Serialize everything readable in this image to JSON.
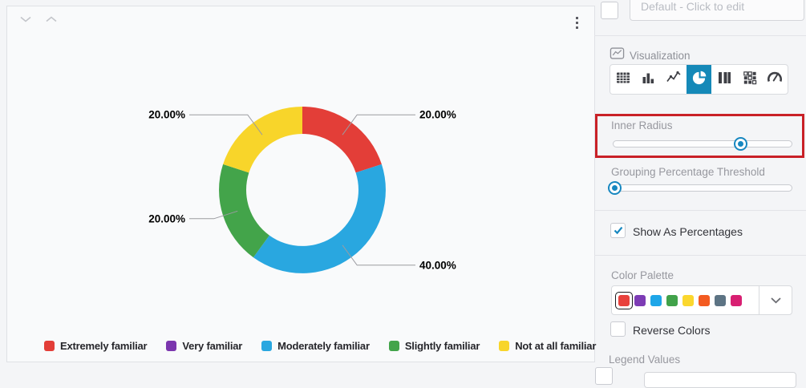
{
  "colors": {
    "accent_blue": "#1589b8",
    "slider_blue": "#1787c0",
    "annotation_red": "#c92127",
    "connector_gray": "#9a9ba0"
  },
  "chart_data": {
    "type": "pie",
    "subtype": "donut",
    "title": "",
    "categories": [
      "Extremely familiar",
      "Very familiar",
      "Moderately familiar",
      "Slightly familiar",
      "Not at all familiar"
    ],
    "values": [
      20,
      0,
      40,
      20,
      20
    ],
    "colors": [
      "#e33e38",
      "#7b36ae",
      "#29a7e0",
      "#43a44a",
      "#f8d52a"
    ],
    "displayed_labels": [
      "20.00%",
      "40.00%",
      "20.00%",
      "20.00%"
    ],
    "label_format": "percent-2dp",
    "legend_position": "bottom",
    "start_angle_deg": 0,
    "direction": "clockwise"
  },
  "sidebar": {
    "title_field": {
      "placeholder": "Default - Click to edit",
      "checked": false
    },
    "visualization": {
      "label": "Visualization",
      "types": [
        "table",
        "bar-chart",
        "line-chart",
        "pie-chart",
        "stacked-bar",
        "matrix",
        "gauge"
      ],
      "selected": "pie-chart"
    },
    "inner_radius": {
      "label": "Inner Radius",
      "value_pct": 71,
      "highlighted": true
    },
    "grouping_threshold": {
      "label": "Grouping Percentage Threshold",
      "value_pct": 0
    },
    "show_as_percentages": {
      "label": "Show As Percentages",
      "checked": true
    },
    "color_palette": {
      "label": "Color Palette",
      "swatches": [
        "#e8413c",
        "#7d3cb5",
        "#1ea6e8",
        "#41a24a",
        "#fbd72e",
        "#f35b21",
        "#5d7484",
        "#d81f72"
      ],
      "selected_index": 0
    },
    "reverse_colors": {
      "label": "Reverse Colors",
      "checked": false
    },
    "legend_values": {
      "label": "Legend Values"
    }
  }
}
